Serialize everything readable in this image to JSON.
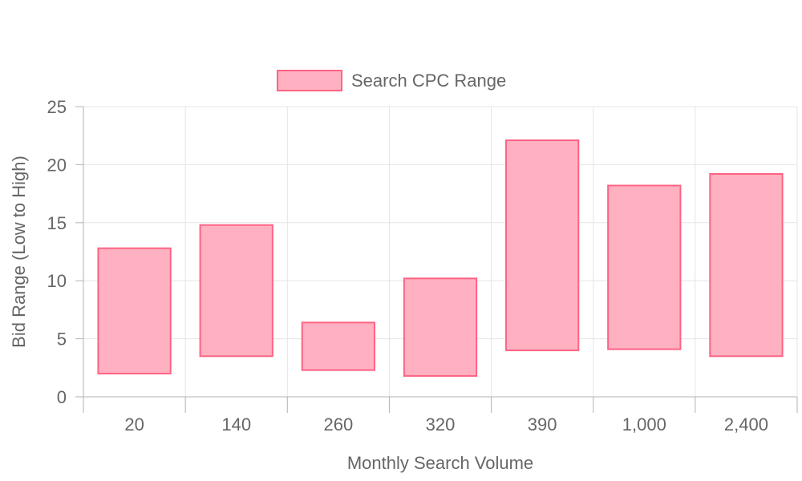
{
  "chart_data": {
    "type": "bar",
    "subtype": "floating-range",
    "categories": [
      "20",
      "140",
      "260",
      "320",
      "390",
      "1,000",
      "2,400"
    ],
    "series": [
      {
        "name": "Search CPC Range",
        "values": [
          [
            2.0,
            12.8
          ],
          [
            3.5,
            14.8
          ],
          [
            2.3,
            6.4
          ],
          [
            1.8,
            10.2
          ],
          [
            4.0,
            22.1
          ],
          [
            4.1,
            18.2
          ],
          [
            3.5,
            19.2
          ]
        ]
      }
    ],
    "xlabel": "Monthly Search Volume",
    "ylabel": "Bid Range (Low to High)",
    "ylim": [
      0,
      25
    ],
    "yticks": [
      "0",
      "5",
      "10",
      "15",
      "20",
      "25"
    ],
    "grid": true,
    "legend_position": "top",
    "colors": {
      "bar_fill": "#ffb1c1",
      "bar_border": "#ff6384",
      "grid": "#e5e5e5",
      "axis": "#b3b3b3",
      "text": "#666666"
    }
  }
}
